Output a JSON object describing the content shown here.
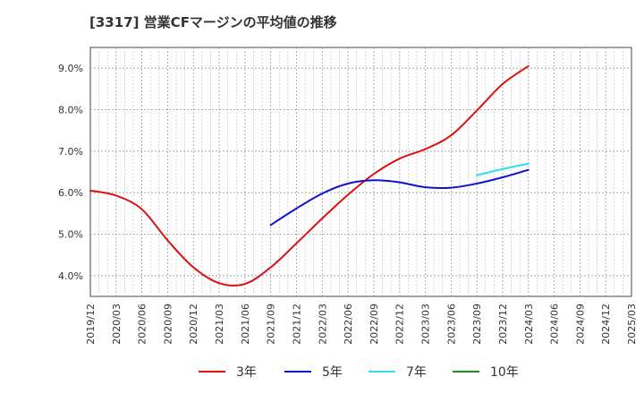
{
  "chart_data": {
    "type": "line",
    "title": "[3317]  営業CFマージンの平均値の推移",
    "xlabel": "",
    "ylabel": "",
    "ylim": [
      3.5,
      9.5
    ],
    "yticks": [
      4.0,
      5.0,
      6.0,
      7.0,
      8.0,
      9.0
    ],
    "ytick_labels": [
      "4.0%",
      "5.0%",
      "6.0%",
      "7.0%",
      "8.0%",
      "9.0%"
    ],
    "x_categories": [
      "2019/12",
      "2020/03",
      "2020/06",
      "2020/09",
      "2020/12",
      "2021/03",
      "2021/06",
      "2021/09",
      "2021/12",
      "2022/03",
      "2022/06",
      "2022/09",
      "2022/12",
      "2023/03",
      "2023/06",
      "2023/09",
      "2023/12",
      "2024/03",
      "2024/06",
      "2024/09",
      "2024/12",
      "2025/03"
    ],
    "grid": true,
    "legend_position": "bottom",
    "series": [
      {
        "name": "3年",
        "color": "#dd1111",
        "points": [
          [
            "2019/12",
            6.05
          ],
          [
            "2020/03",
            5.93
          ],
          [
            "2020/06",
            5.6
          ],
          [
            "2020/09",
            4.85
          ],
          [
            "2020/12",
            4.2
          ],
          [
            "2021/03",
            3.82
          ],
          [
            "2021/06",
            3.8
          ],
          [
            "2021/09",
            4.2
          ],
          [
            "2021/12",
            4.78
          ],
          [
            "2022/03",
            5.38
          ],
          [
            "2022/06",
            5.95
          ],
          [
            "2022/09",
            6.45
          ],
          [
            "2022/12",
            6.82
          ],
          [
            "2023/03",
            7.05
          ],
          [
            "2023/06",
            7.38
          ],
          [
            "2023/09",
            7.98
          ],
          [
            "2023/12",
            8.62
          ],
          [
            "2024/03",
            9.05
          ]
        ]
      },
      {
        "name": "5年",
        "color": "#1111cc",
        "points": [
          [
            "2021/09",
            5.22
          ],
          [
            "2021/12",
            5.62
          ],
          [
            "2022/03",
            5.98
          ],
          [
            "2022/06",
            6.22
          ],
          [
            "2022/09",
            6.3
          ],
          [
            "2022/12",
            6.25
          ],
          [
            "2023/03",
            6.13
          ],
          [
            "2023/06",
            6.12
          ],
          [
            "2023/09",
            6.22
          ],
          [
            "2023/12",
            6.37
          ],
          [
            "2024/03",
            6.55
          ]
        ]
      },
      {
        "name": "7年",
        "color": "#33ddee",
        "points": [
          [
            "2023/09",
            6.42
          ],
          [
            "2023/12",
            6.57
          ],
          [
            "2024/03",
            6.7
          ]
        ]
      },
      {
        "name": "10年",
        "color": "#228822",
        "points": []
      }
    ]
  }
}
